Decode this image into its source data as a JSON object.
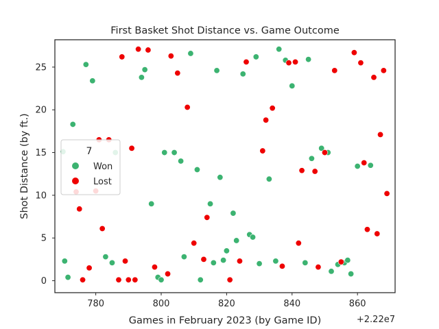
{
  "chart_data": {
    "type": "scatter",
    "title": "First Basket Shot Distance vs. Game Outcome",
    "xlabel": "Games in February 2023 (by Game ID)",
    "ylabel": "Shot Distance (by ft.)",
    "x_offset_label": "+2.22e7",
    "xlim": [
      767.5,
      871.5
    ],
    "ylim": [
      -1.4,
      28.2
    ],
    "xticks": [
      780,
      800,
      820,
      840,
      860
    ],
    "yticks": [
      0,
      5,
      10,
      15,
      20,
      25
    ],
    "grid": false,
    "legend": {
      "title": "7",
      "placement": "center-left",
      "entries": [
        "Won",
        "Lost"
      ]
    },
    "series": [
      {
        "name": "Won",
        "color": "#3cb371",
        "points": [
          [
            770,
            15.1
          ],
          [
            770.5,
            2.3
          ],
          [
            771.5,
            0.4
          ],
          [
            773,
            18.3
          ],
          [
            777,
            25.3
          ],
          [
            779,
            23.4
          ],
          [
            783,
            2.8
          ],
          [
            785,
            2.1
          ],
          [
            786,
            15.0
          ],
          [
            794,
            23.8
          ],
          [
            795,
            24.7
          ],
          [
            797,
            9.0
          ],
          [
            799,
            0.4
          ],
          [
            800,
            0.1
          ],
          [
            801,
            15.0
          ],
          [
            804,
            15.0
          ],
          [
            806,
            14.0
          ],
          [
            807,
            2.8
          ],
          [
            809,
            26.6
          ],
          [
            811,
            13.0
          ],
          [
            812,
            0.1
          ],
          [
            815,
            9.0
          ],
          [
            816,
            2.1
          ],
          [
            817,
            24.6
          ],
          [
            818,
            12.1
          ],
          [
            819,
            2.4
          ],
          [
            820,
            3.5
          ],
          [
            822,
            7.9
          ],
          [
            823,
            4.7
          ],
          [
            825,
            24.2
          ],
          [
            827,
            5.4
          ],
          [
            828,
            5.1
          ],
          [
            829,
            26.2
          ],
          [
            830,
            2.0
          ],
          [
            833,
            11.9
          ],
          [
            835,
            2.3
          ],
          [
            836,
            27.1
          ],
          [
            838,
            25.8
          ],
          [
            840,
            22.8
          ],
          [
            844,
            2.1
          ],
          [
            845,
            25.9
          ],
          [
            846,
            14.3
          ],
          [
            849,
            15.5
          ],
          [
            851,
            15.0
          ],
          [
            852,
            1.1
          ],
          [
            854,
            1.9
          ],
          [
            856,
            2.1
          ],
          [
            857,
            2.4
          ],
          [
            858,
            0.8
          ],
          [
            860,
            13.4
          ],
          [
            864,
            13.5
          ]
        ]
      },
      {
        "name": "Lost",
        "color": "#ee0000",
        "points": [
          [
            774,
            10.4
          ],
          [
            775,
            8.4
          ],
          [
            776,
            0.1
          ],
          [
            778,
            1.5
          ],
          [
            780,
            10.5
          ],
          [
            781,
            16.5
          ],
          [
            782,
            6.1
          ],
          [
            784,
            16.5
          ],
          [
            787,
            0.1
          ],
          [
            788,
            26.2
          ],
          [
            789,
            2.3
          ],
          [
            790,
            0.1
          ],
          [
            791,
            15.5
          ],
          [
            792,
            0.1
          ],
          [
            793,
            27.1
          ],
          [
            796,
            27.0
          ],
          [
            798,
            1.6
          ],
          [
            802,
            0.8
          ],
          [
            803,
            26.3
          ],
          [
            805,
            24.3
          ],
          [
            808,
            20.3
          ],
          [
            810,
            4.4
          ],
          [
            813,
            2.5
          ],
          [
            814,
            7.4
          ],
          [
            821,
            0.1
          ],
          [
            824,
            2.3
          ],
          [
            826,
            25.6
          ],
          [
            831,
            15.2
          ],
          [
            832,
            18.8
          ],
          [
            834,
            20.2
          ],
          [
            837,
            1.7
          ],
          [
            839,
            25.5
          ],
          [
            841,
            25.6
          ],
          [
            842,
            4.4
          ],
          [
            843,
            12.9
          ],
          [
            847,
            12.8
          ],
          [
            848,
            1.6
          ],
          [
            850,
            15.0
          ],
          [
            853,
            24.6
          ],
          [
            855,
            2.2
          ],
          [
            859,
            26.7
          ],
          [
            861,
            25.5
          ],
          [
            862,
            13.8
          ],
          [
            863,
            6.0
          ],
          [
            865,
            23.8
          ],
          [
            866,
            5.5
          ],
          [
            867,
            17.1
          ],
          [
            868,
            24.6
          ],
          [
            869,
            10.2
          ]
        ]
      }
    ]
  }
}
